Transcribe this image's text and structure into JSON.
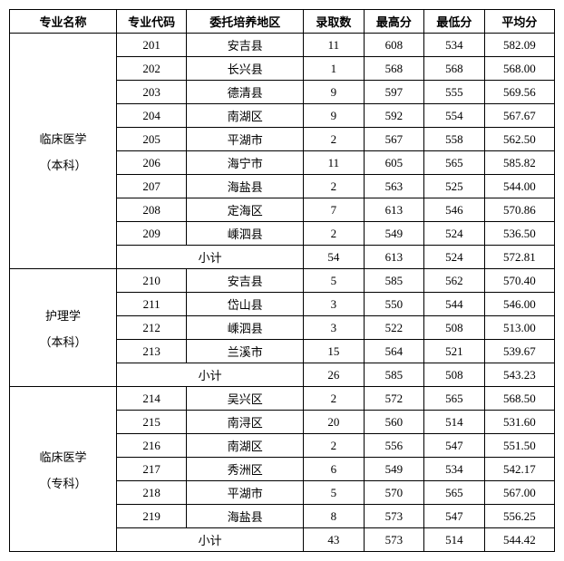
{
  "headers": {
    "col1": "专业名称",
    "col2": "专业代码",
    "col3": "委托培养地区",
    "col4": "录取数",
    "col5": "最高分",
    "col6": "最低分",
    "col7": "平均分"
  },
  "sections": [
    {
      "name_line1": "临床医学",
      "name_line2": "（本科）",
      "rows": [
        {
          "code": "201",
          "region": "安吉县",
          "count": "11",
          "max": "608",
          "min": "534",
          "avg": "582.09"
        },
        {
          "code": "202",
          "region": "长兴县",
          "count": "1",
          "max": "568",
          "min": "568",
          "avg": "568.00"
        },
        {
          "code": "203",
          "region": "德清县",
          "count": "9",
          "max": "597",
          "min": "555",
          "avg": "569.56"
        },
        {
          "code": "204",
          "region": "南湖区",
          "count": "9",
          "max": "592",
          "min": "554",
          "avg": "567.67"
        },
        {
          "code": "205",
          "region": "平湖市",
          "count": "2",
          "max": "567",
          "min": "558",
          "avg": "562.50"
        },
        {
          "code": "206",
          "region": "海宁市",
          "count": "11",
          "max": "605",
          "min": "565",
          "avg": "585.82"
        },
        {
          "code": "207",
          "region": "海盐县",
          "count": "2",
          "max": "563",
          "min": "525",
          "avg": "544.00"
        },
        {
          "code": "208",
          "region": "定海区",
          "count": "7",
          "max": "613",
          "min": "546",
          "avg": "570.86"
        },
        {
          "code": "209",
          "region": "嵊泗县",
          "count": "2",
          "max": "549",
          "min": "524",
          "avg": "536.50"
        }
      ],
      "subtotal": {
        "label": "小计",
        "count": "54",
        "max": "613",
        "min": "524",
        "avg": "572.81"
      }
    },
    {
      "name_line1": "护理学",
      "name_line2": "（本科）",
      "rows": [
        {
          "code": "210",
          "region": "安吉县",
          "count": "5",
          "max": "585",
          "min": "562",
          "avg": "570.40"
        },
        {
          "code": "211",
          "region": "岱山县",
          "count": "3",
          "max": "550",
          "min": "544",
          "avg": "546.00"
        },
        {
          "code": "212",
          "region": "嵊泗县",
          "count": "3",
          "max": "522",
          "min": "508",
          "avg": "513.00"
        },
        {
          "code": "213",
          "region": "兰溪市",
          "count": "15",
          "max": "564",
          "min": "521",
          "avg": "539.67"
        }
      ],
      "subtotal": {
        "label": "小计",
        "count": "26",
        "max": "585",
        "min": "508",
        "avg": "543.23"
      }
    },
    {
      "name_line1": "临床医学",
      "name_line2": "（专科）",
      "rows": [
        {
          "code": "214",
          "region": "吴兴区",
          "count": "2",
          "max": "572",
          "min": "565",
          "avg": "568.50"
        },
        {
          "code": "215",
          "region": "南浔区",
          "count": "20",
          "max": "560",
          "min": "514",
          "avg": "531.60"
        },
        {
          "code": "216",
          "region": "南湖区",
          "count": "2",
          "max": "556",
          "min": "547",
          "avg": "551.50"
        },
        {
          "code": "217",
          "region": "秀洲区",
          "count": "6",
          "max": "549",
          "min": "534",
          "avg": "542.17"
        },
        {
          "code": "218",
          "region": "平湖市",
          "count": "5",
          "max": "570",
          "min": "565",
          "avg": "567.00"
        },
        {
          "code": "219",
          "region": "海盐县",
          "count": "8",
          "max": "573",
          "min": "547",
          "avg": "556.25"
        }
      ],
      "subtotal": {
        "label": "小计",
        "count": "43",
        "max": "573",
        "min": "514",
        "avg": "544.42"
      }
    }
  ],
  "styling": {
    "border_color": "#000000",
    "background_color": "#ffffff",
    "font_family": "SimSun",
    "font_size": 13,
    "header_font_weight": "bold"
  }
}
